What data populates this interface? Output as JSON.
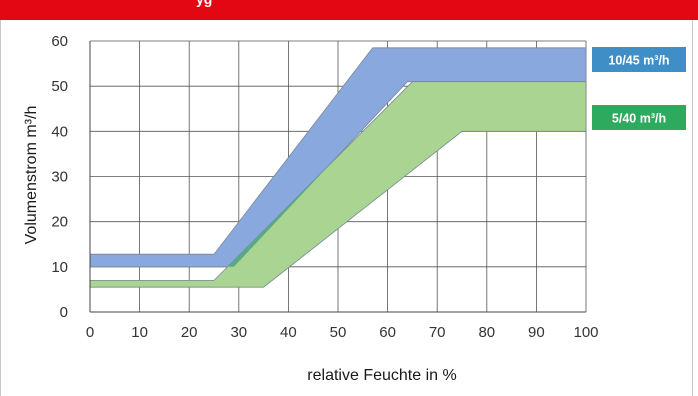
{
  "header": {
    "title_fragment": "yg",
    "color": "#e30613"
  },
  "chart_data": {
    "type": "area",
    "xlabel": "relative Feuchte in %",
    "ylabel": "Volumenstrom m³/h",
    "xlim": [
      0,
      100
    ],
    "ylim": [
      0,
      60
    ],
    "x_ticks": [
      "0",
      "10",
      "20",
      "30",
      "40",
      "50",
      "60",
      "70",
      "80",
      "90",
      "100"
    ],
    "y_ticks": [
      "0",
      "10",
      "20",
      "30",
      "40",
      "50",
      "60"
    ],
    "grid": true,
    "legend_position": "right",
    "series": [
      {
        "name": "10/45 m³/h",
        "color": "#89a9de",
        "label_color": "#3f8fc6",
        "upper": [
          [
            0,
            12.8
          ],
          [
            25,
            12.8
          ],
          [
            57,
            58.5
          ],
          [
            100,
            58.5
          ]
        ],
        "lower": [
          [
            0,
            10
          ],
          [
            29,
            10
          ],
          [
            64,
            51
          ],
          [
            100,
            51
          ]
        ]
      },
      {
        "name": "5/40 m³/h",
        "color": "#a9d491",
        "label_color": "#2eaa5e",
        "upper": [
          [
            0,
            7
          ],
          [
            25,
            7
          ],
          [
            65,
            51
          ],
          [
            100,
            51
          ]
        ],
        "lower": [
          [
            0,
            5.5
          ],
          [
            35,
            5.5
          ],
          [
            75,
            40
          ],
          [
            100,
            40
          ]
        ]
      }
    ],
    "overlap_color": "#58a984"
  }
}
